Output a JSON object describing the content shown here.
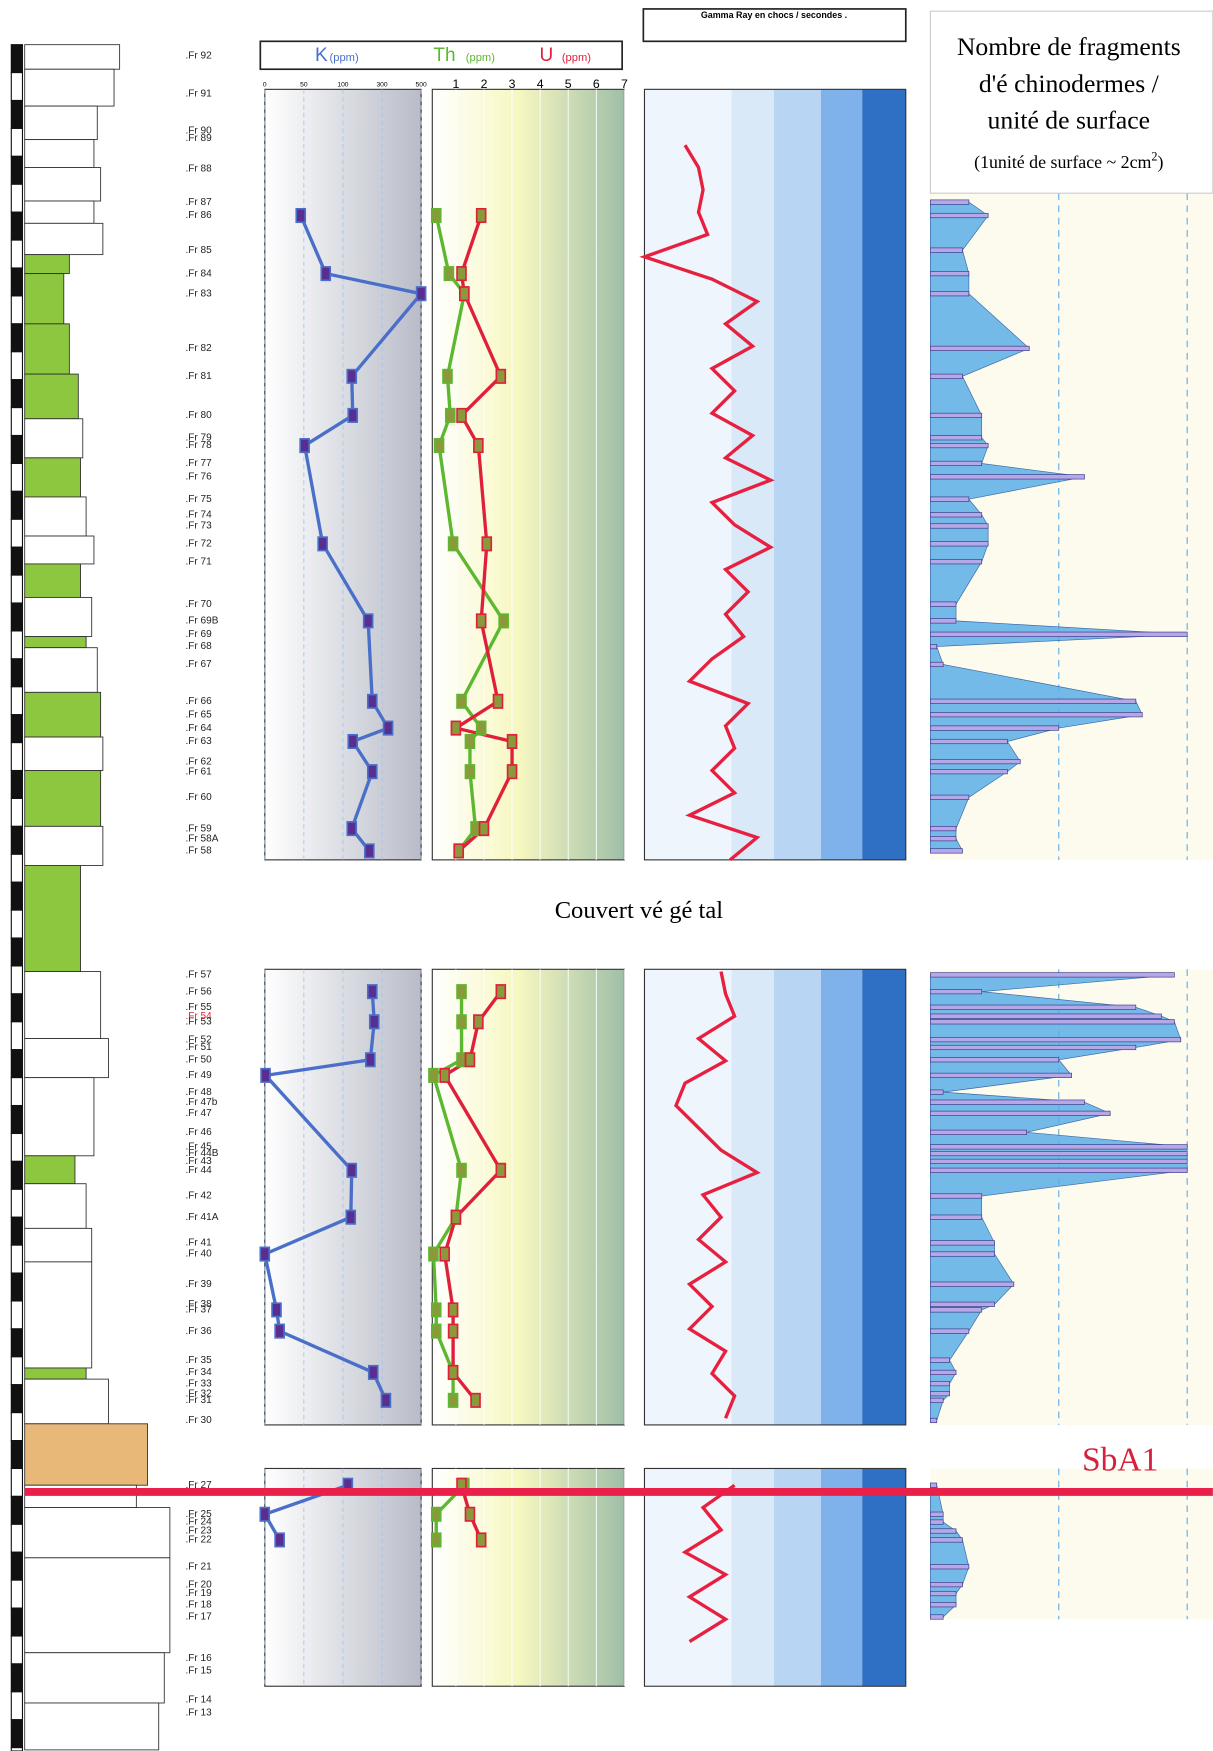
{
  "samples": [
    ".Fr 92",
    ".Fr 91",
    ".Fr 90",
    ".Fr 89",
    ".Fr 88",
    ".Fr 87",
    ".Fr 86",
    ".Fr 85",
    ".Fr 84",
    ".Fr 83",
    ".Fr 82",
    ".Fr 81",
    ".Fr 80",
    ".Fr 79",
    ".Fr 78",
    ".Fr 77",
    ".Fr 76",
    ".Fr 75",
    ".Fr 74",
    ".Fr 73",
    ".Fr 72",
    ".Fr 71",
    ".Fr 70",
    ".Fr 69B",
    ".Fr 69",
    ".Fr 68",
    ".Fr 67",
    ".Fr 66",
    ".Fr 65",
    ".Fr 64",
    ".Fr 63",
    ".Fr 62",
    ".Fr 61",
    ".Fr 60",
    ".Fr 59",
    ".Fr 58A",
    ".Fr 58",
    ".Fr 57",
    ".Fr 56",
    ".Fr 55",
    ".Fr 54",
    ".Fr 53",
    ".Fr 52",
    ".Fr 51",
    ".Fr 50",
    ".Fr 49",
    ".Fr 48",
    ".Fr 47b",
    ".Fr 47",
    ".Fr 46",
    ".Fr 45",
    ".Fr 44B",
    ".Fr 43",
    ".Fr 44",
    ".Fr 42",
    ".Fr 41A",
    ".Fr 41",
    ".Fr 40",
    ".Fr 39",
    ".Fr 38",
    ".Fr 37",
    ".Fr 36",
    ".Fr 35",
    ".Fr 34",
    ".Fr 33",
    ".Fr 32",
    ".Fr 31",
    ".Fr 30",
    ".Fr 27",
    ".Fr 25",
    ".Fr 24",
    ".Fr 23",
    ".Fr 22",
    ".Fr 21",
    ".Fr 20",
    ".Fr 19",
    ".Fr 18",
    ".Fr 17",
    ".Fr 16",
    ".Fr 15",
    ".Fr 14",
    ".Fr 13"
  ],
  "annotations": {
    "vegetation_gap": "Couvert vé gé tal",
    "boundary": "SbA1"
  },
  "chart_data": [
    {
      "type": "line",
      "categories": [
        ".Fr 86",
        ".Fr 84",
        ".Fr 83",
        ".Fr 81",
        ".Fr 80",
        ".Fr 78",
        ".Fr 72",
        ".Fr 69B",
        ".Fr 66",
        ".Fr 64",
        ".Fr 63",
        ".Fr 61",
        ".Fr 59",
        ".Fr 58",
        null,
        ".Fr 56",
        ".Fr 53",
        ".Fr 50",
        ".Fr 49",
        ".Fr 44",
        ".Fr 41A",
        ".Fr 40",
        ".Fr 37",
        ".Fr 36",
        ".Fr 34",
        ".Fr 31",
        null,
        ".Fr 27",
        ".Fr 25",
        ".Fr 22"
      ],
      "xlim": [
        0,
        500
      ],
      "xticks": [
        0,
        50,
        100,
        300,
        500
      ],
      "xscale": "segmented",
      "x2lim": [
        0,
        7
      ],
      "x2ticks": [
        1,
        2,
        3,
        4,
        5,
        6,
        7
      ],
      "grid": true,
      "series": [
        {
          "name": "K",
          "unit": "(ppm)",
          "color": "#4a6fc9",
          "axis": "x",
          "values": [
            46,
            78,
            500,
            145,
            150,
            51,
            74,
            229,
            250,
            331,
            150,
            250,
            145,
            235,
            null,
            250,
            260,
            240,
            1,
            145,
            140,
            0,
            15,
            19,
            255,
            320,
            null,
            125,
            0,
            19
          ]
        },
        {
          "name": "Th",
          "unit": "(ppm)",
          "color": "#5cb82e",
          "axis": "x2",
          "values": [
            0.3,
            0.75,
            1.3,
            0.7,
            0.8,
            0.4,
            0.9,
            2.7,
            1.2,
            1.9,
            1.5,
            1.5,
            1.7,
            1.1,
            null,
            1.2,
            1.2,
            1.2,
            0.2,
            1.2,
            1.0,
            0.2,
            0.3,
            0.3,
            0.9,
            0.9,
            null,
            1.3,
            0.3,
            0.3
          ]
        },
        {
          "name": "U",
          "unit": "(ppm)",
          "color": "#e0203a",
          "axis": "x2",
          "values": [
            1.9,
            1.2,
            1.3,
            2.6,
            1.2,
            1.8,
            2.1,
            1.9,
            2.5,
            1.0,
            3.0,
            3.0,
            2.0,
            1.1,
            null,
            2.6,
            1.8,
            1.5,
            0.6,
            2.6,
            1.0,
            0.6,
            0.9,
            0.9,
            0.9,
            1.7,
            null,
            1.2,
            1.5,
            1.9
          ]
        }
      ]
    },
    {
      "type": "gamma",
      "title": "Gamma Ray en chocs / secondes .",
      "xlim": [
        12,
        70
      ],
      "xticks": [
        20,
        30,
        40,
        50,
        60
      ],
      "color": "#e8203f",
      "values": [
        21,
        24,
        25,
        24,
        26,
        12,
        27,
        37,
        30,
        36,
        27,
        32,
        27,
        36,
        30,
        40,
        27,
        32,
        40,
        30,
        35,
        30,
        34,
        27,
        22,
        35,
        30,
        32,
        27,
        32,
        22,
        37,
        31,
        null,
        null,
        null,
        null,
        29,
        30,
        32,
        24,
        30,
        21,
        19,
        24,
        29,
        37,
        25,
        29,
        24,
        30,
        22,
        27,
        22,
        30,
        27,
        32,
        30,
        null,
        null,
        32,
        25,
        29,
        21,
        30,
        22,
        30,
        22
      ]
    },
    {
      "type": "hbar",
      "title": [
        "Nombre de fragments",
        "d'é chinodermes /",
        "unité de surface"
      ],
      "subtitle": [
        "(1unité de surface ~ 2cm",
        "2",
        ")"
      ],
      "xlim": [
        0,
        220
      ],
      "xticks": [
        100,
        200
      ],
      "grid": true,
      "color": "#5aaee8",
      "categories": [
        ".Fr 87",
        ".Fr 86",
        ".Fr 85",
        ".Fr 84",
        ".Fr 83",
        ".Fr 82",
        ".Fr 81",
        ".Fr 80",
        ".Fr 79",
        ".Fr 78",
        ".Fr 77",
        ".Fr 76",
        ".Fr 75",
        ".Fr 74",
        ".Fr 73",
        ".Fr 72",
        ".Fr 71",
        ".Fr 70",
        ".Fr 69B",
        ".Fr 69",
        ".Fr 68",
        ".Fr 67",
        ".Fr 66",
        ".Fr 65",
        ".Fr 64",
        ".Fr 63",
        ".Fr 62",
        ".Fr 61",
        ".Fr 60",
        ".Fr 59",
        ".Fr 58A",
        ".Fr 58",
        null,
        ".Fr 57",
        ".Fr 56",
        ".Fr 55",
        ".Fr 54",
        ".Fr 53",
        ".Fr 52",
        ".Fr 51",
        ".Fr 50",
        ".Fr 49",
        ".Fr 48",
        ".Fr 47b",
        ".Fr 47",
        ".Fr 46",
        ".Fr 45",
        ".Fr 44B",
        ".Fr 43",
        ".Fr 44",
        ".Fr 42",
        ".Fr 41A",
        ".Fr 41",
        ".Fr 40",
        ".Fr 39",
        ".Fr 38",
        ".Fr 37",
        ".Fr 36",
        ".Fr 35",
        ".Fr 34",
        ".Fr 33",
        ".Fr 32",
        ".Fr 31",
        ".Fr 30",
        null,
        ".Fr 27",
        ".Fr 25",
        ".Fr 24",
        ".Fr 23",
        ".Fr 22",
        ".Fr 21",
        ".Fr 20",
        ".Fr 19",
        ".Fr 18",
        ".Fr 17"
      ],
      "values": [
        30,
        45,
        25,
        30,
        30,
        77,
        25,
        40,
        40,
        45,
        40,
        120,
        30,
        40,
        45,
        45,
        40,
        20,
        20,
        200,
        5,
        10,
        160,
        165,
        100,
        60,
        70,
        60,
        30,
        20,
        20,
        25,
        null,
        190,
        40,
        160,
        180,
        190,
        195,
        160,
        100,
        110,
        10,
        120,
        140,
        75,
        200,
        200,
        200,
        200,
        40,
        40,
        50,
        50,
        65,
        50,
        40,
        30,
        15,
        20,
        15,
        15,
        10,
        5,
        null,
        5,
        10,
        10,
        20,
        25,
        30,
        25,
        20,
        20,
        10
      ]
    }
  ]
}
